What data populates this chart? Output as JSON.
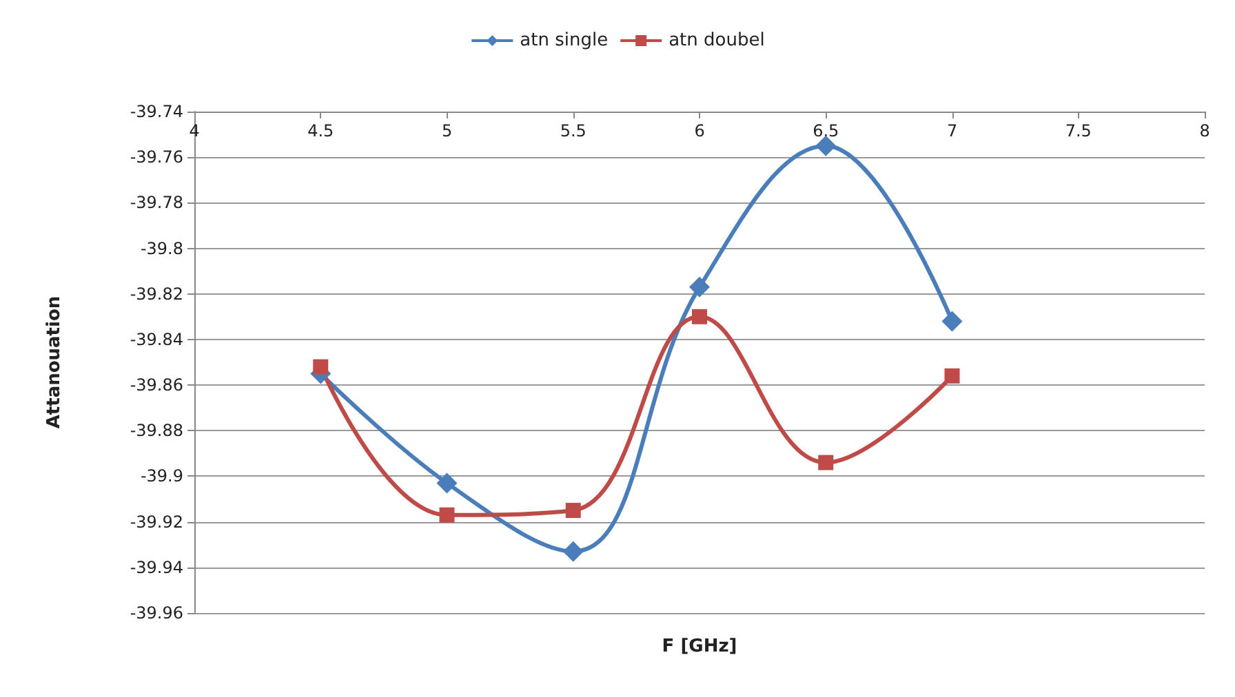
{
  "chart_data": {
    "type": "line",
    "xlabel": "F [GHz]",
    "ylabel": "Attanouation",
    "x": [
      4.5,
      5,
      5.5,
      6,
      6.5,
      7
    ],
    "series": [
      {
        "name": "atn single",
        "color": "#4a7ebb",
        "marker": "diamond",
        "values": [
          -39.855,
          -39.903,
          -39.933,
          -39.817,
          -39.755,
          -39.832
        ]
      },
      {
        "name": "atn doubel",
        "color": "#be4b48",
        "marker": "square",
        "values": [
          -39.852,
          -39.917,
          -39.915,
          -39.83,
          -39.894,
          -39.856
        ]
      }
    ],
    "xlim": [
      4,
      8
    ],
    "xticks": [
      4,
      4.5,
      5,
      5.5,
      6,
      6.5,
      7,
      7.5,
      8
    ],
    "ylim": [
      -39.96,
      -39.74
    ],
    "yticks": [
      -39.74,
      -39.76,
      -39.78,
      -39.8,
      -39.82,
      -39.84,
      -39.86,
      -39.88,
      -39.9,
      -39.92,
      -39.94,
      -39.96
    ],
    "grid": "y",
    "legend": "top"
  }
}
